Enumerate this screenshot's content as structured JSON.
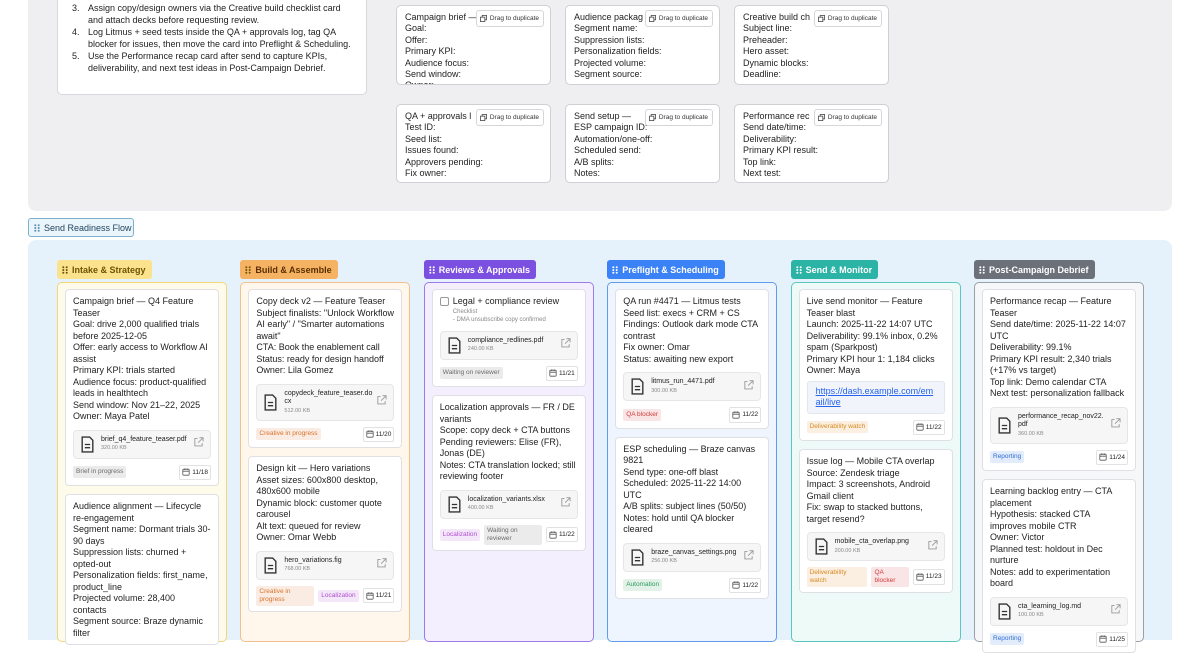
{
  "instructions": {
    "steps": [
      {
        "number": "3.",
        "text": "Assign copy/design owners via the Creative build checklist card and attach decks before requesting review."
      },
      {
        "number": "4.",
        "text": "Log Litmus + seed tests inside the QA + approvals log, tag QA blocker for issues, then move the card into Preflight & Scheduling."
      },
      {
        "number": "5.",
        "text": "Use the Performance recap card after send to capture KPIs, deliverability, and next test ideas in Post-Campaign Debrief."
      }
    ]
  },
  "templates": [
    {
      "title": "Campaign brief —",
      "button": "Drag to duplicate",
      "fields": [
        "Goal:",
        "Offer:",
        "Primary KPI:",
        "Audience focus:",
        "Send window:",
        "Owner:"
      ]
    },
    {
      "title": "Audience packag",
      "button": "Drag to duplicate",
      "fields": [
        "Segment name:",
        "Suppression lists:",
        "Personalization fields:",
        "Projected volume:",
        "Segment source:"
      ]
    },
    {
      "title": "Creative build ch",
      "button": "Drag to duplicate",
      "fields": [
        "Subject line:",
        "Preheader:",
        "Hero asset:",
        "Dynamic blocks:",
        "Deadline:"
      ]
    },
    {
      "title": "QA + approvals l",
      "button": "Drag to duplicate",
      "fields": [
        "Test ID:",
        "Seed list:",
        "Issues found:",
        "Approvers pending:",
        "Fix owner:"
      ]
    },
    {
      "title": "Send setup —",
      "button": "Drag to duplicate",
      "fields": [
        "ESP campaign ID:",
        "Automation/one-off:",
        "Scheduled send:",
        "A/B splits:",
        "Notes:"
      ]
    },
    {
      "title": "Performance rec",
      "button": "Drag to duplicate",
      "fields": [
        "Send date/time:",
        "Deliverability:",
        "Primary KPI result:",
        "Top link:",
        "Next test:"
      ]
    }
  ],
  "flow_label": "Send Readiness Flow",
  "columns": [
    {
      "title": "Intake & Strategy",
      "cards": [
        {
          "lines": [
            "Campaign brief — Q4 Feature Teaser",
            "Goal: drive 2,000 qualified trials before 2025-12-05",
            "Offer: early access to Workflow AI assist",
            "Primary KPI: trials started",
            "Audience focus: product-qualified leads in healthtech",
            "Send window: Nov 21–22, 2025",
            "Owner: Maya Patel"
          ],
          "attachment": {
            "name": "brief_q4_feature_teaser.pdf",
            "size": "320.00 KB"
          },
          "tags": [
            {
              "label": "Brief in progress",
              "color": "#6b6b6b"
            }
          ],
          "date": "11/18"
        },
        {
          "lines": [
            "Audience alignment — Lifecycle re-engagement",
            "Segment name: Dormant trials 30-90 days",
            "Suppression lists: churned + opted-out",
            "Personalization fields: first_name, product_line",
            "Projected volume: 28,400 contacts",
            "Segment source: Braze dynamic filter"
          ]
        }
      ]
    },
    {
      "title": "Build & Assemble",
      "cards": [
        {
          "lines": [
            "Copy deck v2 — Feature Teaser",
            "Subject finalists: \"Unlock Workflow AI early\" / \"Smarter automations await\"",
            "CTA: Book the enablement call",
            "Status: ready for design handoff",
            "Owner: Lila Gomez"
          ],
          "attachment": {
            "name": "copydeck_feature_teaser.docx",
            "size": "512.00 KB"
          },
          "tags": [
            {
              "label": "Creative in progress",
              "color": "#d9722a"
            }
          ],
          "date": "11/20"
        },
        {
          "lines": [
            "Design kit — Hero variations",
            "Asset sizes: 600x800 desktop, 480x600 mobile",
            "Dynamic block: customer quote carousel",
            "Alt text: queued for review",
            "Owner: Omar Webb"
          ],
          "attachment": {
            "name": "hero_variations.fig",
            "size": "768.00 KB"
          },
          "tags": [
            {
              "label": "Creative in progress",
              "color": "#d9722a"
            },
            {
              "label": "Localization",
              "color": "#b04ed0"
            }
          ],
          "date": "11/21"
        }
      ]
    },
    {
      "title": "Reviews & Approvals",
      "cards": [
        {
          "check_title": "Legal + compliance review",
          "checklist_label": "Checklist",
          "checklist_items": [
            "- DMA unsubscribe copy confirmed"
          ],
          "attachment": {
            "name": "compliance_redlines.pdf",
            "size": "240.00 KB"
          },
          "tags": [
            {
              "label": "Waiting on reviewer",
              "color": "#6b6b6b"
            }
          ],
          "date": "11/21"
        },
        {
          "lines": [
            "Localization approvals — FR / DE variants",
            "Scope: copy deck + CTA buttons",
            "Pending reviewers: Elise (FR), Jonas (DE)",
            "Notes: CTA translation locked; still reviewing footer"
          ],
          "attachment": {
            "name": "localization_variants.xlsx",
            "size": "400.00 KB"
          },
          "tags": [
            {
              "label": "Localization",
              "color": "#b04ed0"
            },
            {
              "label": "Waiting on reviewer",
              "color": "#6b6b6b"
            }
          ],
          "date": "11/22"
        }
      ]
    },
    {
      "title": "Preflight & Scheduling",
      "cards": [
        {
          "lines": [
            "QA run #4471 — Litmus tests",
            "Seed list: execs + CRM + CS",
            "Findings: Outlook dark mode CTA contrast",
            "Fix owner: Omar",
            "Status: awaiting new export"
          ],
          "attachment": {
            "name": "litmus_run_4471.pdf",
            "size": "300.00 KB"
          },
          "tags": [
            {
              "label": "QA blocker",
              "color": "#d33a3a"
            }
          ],
          "date": "11/22"
        },
        {
          "lines": [
            "ESP scheduling — Braze canvas 9821",
            "Send type: one-off blast",
            "Scheduled: 2025-11-22 14:00 UTC",
            "A/B splits: subject lines (50/50)",
            "Notes: hold until QA blocker cleared"
          ],
          "attachment": {
            "name": "braze_canvas_settings.png",
            "size": "256.00 KB"
          },
          "tags": [
            {
              "label": "Automation",
              "color": "#2a9a5a"
            }
          ],
          "date": "11/22"
        }
      ]
    },
    {
      "title": "Send & Monitor",
      "cards": [
        {
          "lines": [
            "Live send monitor — Feature Teaser blast",
            "Launch: 2025-11-22 14:07 UTC",
            "Deliverability: 99.1% inbox, 0.2% spam (Sparkpost)",
            "Primary KPI hour 1: 1,184 clicks",
            "Owner: Maya"
          ],
          "link": "https://dash.example.com/email/live",
          "tags": [
            {
              "label": "Deliverability watch",
              "color": "#d98a1f"
            }
          ],
          "date": "11/22"
        },
        {
          "lines": [
            "Issue log — Mobile CTA overlap",
            "Source: Zendesk triage",
            "Impact: 3 screenshots, Android Gmail client",
            "Fix: swap to stacked buttons, target resend?"
          ],
          "attachment": {
            "name": "mobile_cta_overlap.png",
            "size": "200.00 KB"
          },
          "tags": [
            {
              "label": "Deliverability watch",
              "color": "#d98a1f"
            },
            {
              "label": "QA blocker",
              "color": "#d33a3a"
            }
          ],
          "date": "11/23"
        }
      ]
    },
    {
      "title": "Post-Campaign Debrief",
      "cards": [
        {
          "lines": [
            "Performance recap — Feature Teaser",
            "Send date/time: 2025-11-22 14:07 UTC",
            "Deliverability: 99.1%",
            "Primary KPI result: 2,340 trials (+17% vs target)",
            "Top link: Demo calendar CTA",
            "Next test: personalization fallback"
          ],
          "attachment": {
            "name": "performance_recap_nov22.pdf",
            "size": "360.00 KB"
          },
          "tags": [
            {
              "label": "Reporting",
              "color": "#2f6fd6"
            }
          ],
          "date": "11/24"
        },
        {
          "lines": [
            "Learning backlog entry — CTA placement",
            "Hypothesis: stacked CTA improves mobile CTR",
            "Owner: Victor",
            "Planned test: holdout in Dec nurture",
            "Notes: add to experimentation board"
          ],
          "attachment": {
            "name": "cta_learning_log.md",
            "size": "100.00 KB"
          },
          "tags": [
            {
              "label": "Reporting",
              "color": "#2f6fd6"
            }
          ],
          "date": "11/25"
        }
      ]
    }
  ]
}
